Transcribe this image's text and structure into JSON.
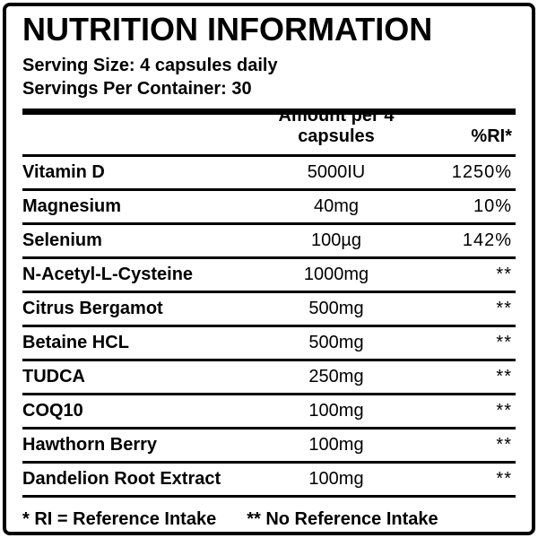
{
  "label": {
    "title": "NUTRITION INFORMATION",
    "serving_size": "Serving Size: 4 capsules daily",
    "servings_per_container": "Servings Per Container: 30",
    "table": {
      "columns": {
        "name": "",
        "amount": "Amount per 4 capsules",
        "ri": "%RI*"
      },
      "rows": [
        {
          "name": "Vitamin D",
          "amount": "5000IU",
          "ri": "1250%"
        },
        {
          "name": "Magnesium",
          "amount": "40mg",
          "ri": "10%"
        },
        {
          "name": "Selenium",
          "amount": "100µg",
          "ri": "142%"
        },
        {
          "name": "N-Acetyl-L-Cysteine",
          "amount": "1000mg",
          "ri": "**"
        },
        {
          "name": "Citrus Bergamot",
          "amount": "500mg",
          "ri": "**"
        },
        {
          "name": "Betaine HCL",
          "amount": "500mg",
          "ri": "**"
        },
        {
          "name": "TUDCA",
          "amount": "250mg",
          "ri": "**"
        },
        {
          "name": "COQ10",
          "amount": "100mg",
          "ri": "**"
        },
        {
          "name": "Hawthorn Berry",
          "amount": "100mg",
          "ri": "**"
        },
        {
          "name": "Dandelion Root Extract",
          "amount": "100mg",
          "ri": "**"
        }
      ]
    },
    "footnote_left": "* RI = Reference Intake",
    "footnote_right": "** No Reference Intake"
  },
  "colors": {
    "ink": "#000000",
    "background": "#ffffff"
  }
}
